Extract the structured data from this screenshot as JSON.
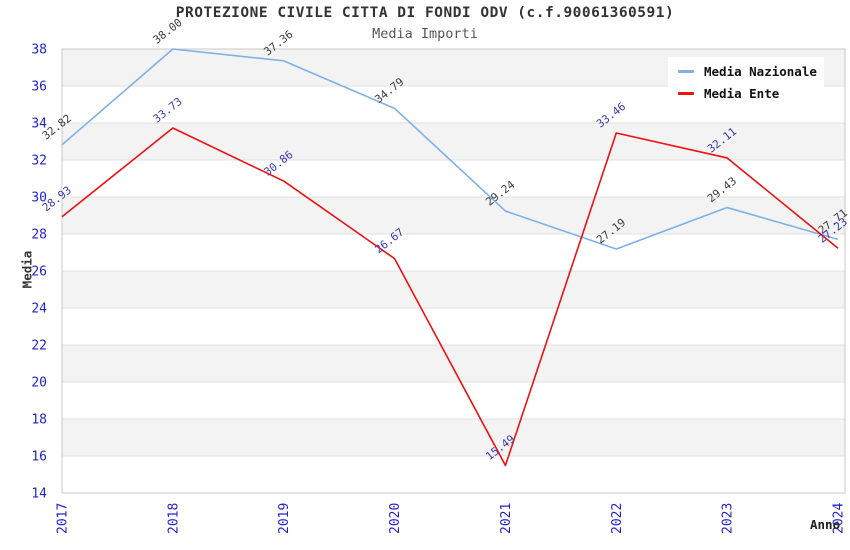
{
  "chart_data": {
    "type": "line",
    "title": "PROTEZIONE CIVILE CITTA DI FONDI ODV (c.f.90061360591)",
    "subtitle": "Media Importi",
    "xlabel": "Anno",
    "ylabel": "Media",
    "categories": [
      "2017",
      "2018",
      "2019",
      "2020",
      "2021",
      "2022",
      "2023",
      "2024"
    ],
    "series": [
      {
        "name": "Media Nazionale",
        "color": "#7db1e8",
        "label_color": "#3c3c3c",
        "values": [
          32.82,
          38.0,
          37.36,
          34.79,
          29.24,
          27.19,
          29.43,
          27.71
        ]
      },
      {
        "name": "Media Ente",
        "color": "#ee1111",
        "label_color": "#3a3ab4",
        "values": [
          28.93,
          33.73,
          30.86,
          26.67,
          15.49,
          33.46,
          32.11,
          27.23
        ]
      }
    ],
    "ylim": [
      14,
      38
    ],
    "ytick_step": 2,
    "tick_color": "#2323cc",
    "band_color": "#f3f3f3",
    "gridline_color": "#e0e0e0",
    "border_color": "#c9c9c9",
    "legend_position": "top-right",
    "grid": "horizontal-bands"
  }
}
